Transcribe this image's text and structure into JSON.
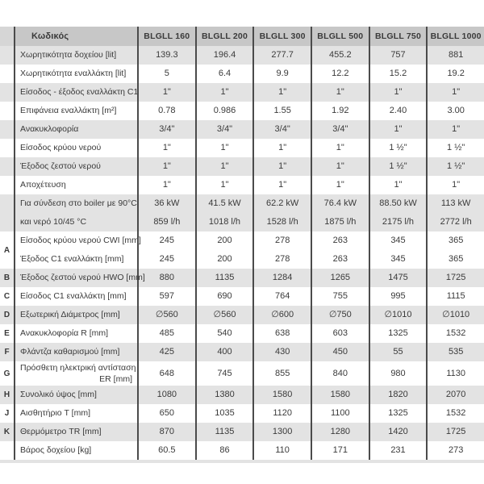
{
  "header": {
    "code_label": "Κωδικός",
    "models": [
      "BLGLL 160",
      "BLGLL 200",
      "BLGLL 300",
      "BLGLL 500",
      "BLGLL 750",
      "BLGLL 1000"
    ]
  },
  "rows": [
    {
      "letter": "",
      "label": "Χωρητικότητα δοχείου [lit]",
      "values": [
        "139.3",
        "196.4",
        "277.7",
        "455.2",
        "757",
        "881"
      ]
    },
    {
      "letter": "",
      "label": "Χωρητικότητα εναλλάκτη [lit]",
      "values": [
        "5",
        "6.4",
        "9.9",
        "12.2",
        "15.2",
        "19.2"
      ]
    },
    {
      "letter": "",
      "label": "Είσοδος - έξοδος εναλλάκτη C1",
      "values": [
        "1\"",
        "1\"",
        "1\"",
        "1\"",
        "1\"",
        "1\""
      ]
    },
    {
      "letter": "",
      "label": "Επιφάνεια εναλλάκτη [m²]",
      "values": [
        "0.78",
        "0.986",
        "1.55",
        "1.92",
        "2.40",
        "3.00"
      ]
    },
    {
      "letter": "",
      "label": "Ανακυκλοφορία",
      "values": [
        "3/4\"",
        "3/4\"",
        "3/4\"",
        "3/4\"",
        "1\"",
        "1\""
      ]
    },
    {
      "letter": "",
      "label": "Είσοδος κρύου νερού",
      "values": [
        "1\"",
        "1\"",
        "1\"",
        "1\"",
        "1 ½\"",
        "1 ½\""
      ]
    },
    {
      "letter": "",
      "label": "Έξοδος ζεστού νερού",
      "values": [
        "1\"",
        "1\"",
        "1\"",
        "1\"",
        "1 ½\"",
        "1 ½\""
      ]
    },
    {
      "letter": "",
      "label": "Αποχέτευση",
      "values": [
        "1\"",
        "1\"",
        "1\"",
        "1\"",
        "1\"",
        "1\""
      ]
    },
    {
      "letter": "",
      "label": "Για σύνδεση στο boiler με 90°C",
      "label2": "και νερό 10/45 °C",
      "values": [
        "36 kW",
        "41.5 kW",
        "62.2 kW",
        "76.4 kW",
        "88.50 kW",
        "113 kW"
      ],
      "values2": [
        "859 l/h",
        "1018 l/h",
        "1528 l/h",
        "1875 l/h",
        "2175 l/h",
        "2772 l/h"
      ]
    },
    {
      "letter": "A",
      "label": "Είσοδος κρύου νερού CWI [mm]",
      "label2": "Έξοδος C1 εναλλάκτη [mm]",
      "values": [
        "245",
        "200",
        "278",
        "263",
        "345",
        "365"
      ],
      "values2": [
        "245",
        "200",
        "278",
        "263",
        "345",
        "365"
      ]
    },
    {
      "letter": "B",
      "label": "Έξοδος ζεστού νερού HWO [mm]",
      "values": [
        "880",
        "1135",
        "1284",
        "1265",
        "1475",
        "1725"
      ]
    },
    {
      "letter": "C",
      "label": "Είσοδος C1 εναλλάκτη [mm]",
      "values": [
        "597",
        "690",
        "764",
        "755",
        "995",
        "1115"
      ]
    },
    {
      "letter": "D",
      "label": "Εξωτερική Διάμετρος [mm]",
      "values": [
        "∅560",
        "∅560",
        "∅600",
        "∅750",
        "∅1010",
        "∅1010"
      ]
    },
    {
      "letter": "E",
      "label": "Ανακυκλοφορία R [mm]",
      "values": [
        "485",
        "540",
        "638",
        "603",
        "1325",
        "1532"
      ]
    },
    {
      "letter": "F",
      "label": "Φλάντζα καθαρισμού [mm]",
      "values": [
        "425",
        "400",
        "430",
        "450",
        "55",
        "535"
      ]
    },
    {
      "letter": "G",
      "label": "Πρόσθετη ηλεκτρική αντίσταση",
      "label2": "ER [mm]",
      "label2_right": true,
      "values": [
        "648",
        "745",
        "855",
        "840",
        "980",
        "1130"
      ]
    },
    {
      "letter": "H",
      "label": "Συνολικό ύψος [mm]",
      "values": [
        "1080",
        "1380",
        "1580",
        "1580",
        "1820",
        "2070"
      ]
    },
    {
      "letter": "J",
      "label": "Αισθητήριο  T [mm]",
      "values": [
        "650",
        "1035",
        "1120",
        "1100",
        "1325",
        "1532"
      ]
    },
    {
      "letter": "K",
      "label": "Θερμόμετρο TR [mm]",
      "values": [
        "870",
        "1135",
        "1300",
        "1280",
        "1420",
        "1725"
      ]
    },
    {
      "letter": "",
      "label": "Βάρος δοχείου [kg]",
      "values": [
        "60.5",
        "86",
        "110",
        "171",
        "231",
        "273"
      ]
    }
  ],
  "colors": {
    "header_bg": "#c7c7c7",
    "header_letter_bg": "#d6d6d6",
    "shaded_row_bg": "#e3e3e3",
    "separator_line": "#4b4b4b",
    "text": "#3a3a3a"
  }
}
